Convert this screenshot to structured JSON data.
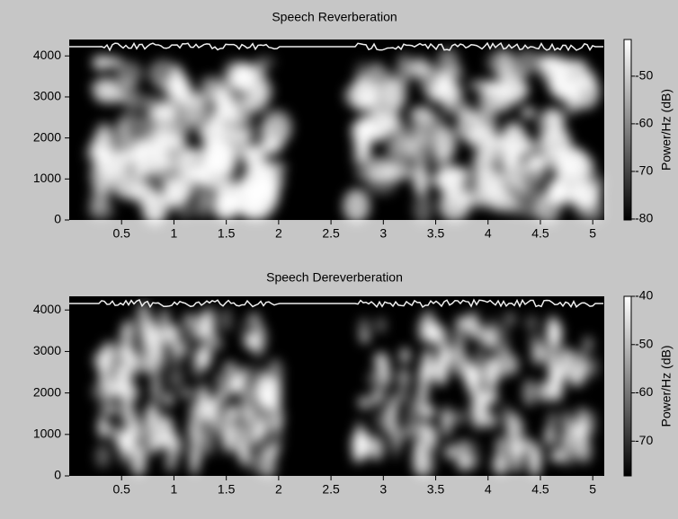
{
  "chart_data": [
    {
      "type": "heatmap",
      "title": "Speech Reverberation",
      "xlim": [
        0,
        5.11
      ],
      "xticks": [
        0.5,
        1,
        1.5,
        2,
        2.5,
        3,
        3.5,
        4,
        4.5,
        5
      ],
      "ylim": [
        0,
        4400
      ],
      "yticks": [
        0,
        1000,
        2000,
        3000,
        4000
      ],
      "colorbar": {
        "label": "Power/Hz (dB)",
        "lim": [
          -80.2,
          -42.3
        ],
        "ticks": [
          -80,
          -70,
          -60,
          -50
        ]
      }
    },
    {
      "type": "heatmap",
      "title": "Speech Dereverberation",
      "xlim": [
        0,
        5.11
      ],
      "xticks": [
        0.5,
        1,
        1.5,
        2,
        2.5,
        3,
        3.5,
        4,
        4.5,
        5
      ],
      "ylim": [
        0,
        4330
      ],
      "yticks": [
        0,
        1000,
        2000,
        3000,
        4000
      ],
      "colorbar": {
        "label": "Power/Hz (dB)",
        "lim": [
          -77.2,
          -40
        ],
        "ticks": [
          -70,
          -60,
          -50,
          -40
        ]
      }
    }
  ]
}
